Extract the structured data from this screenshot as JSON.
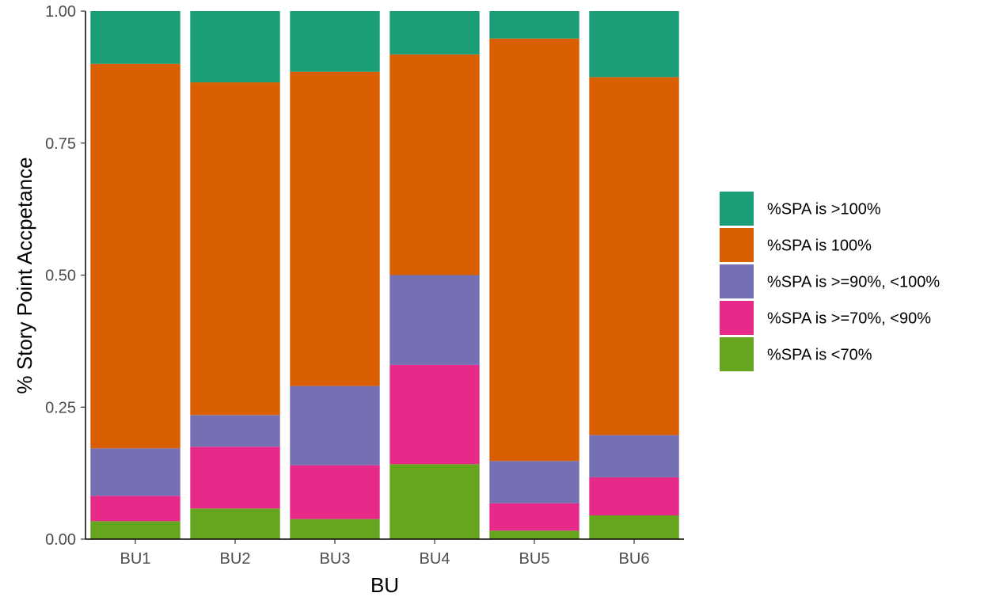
{
  "chart_data": {
    "type": "bar",
    "stacked": true,
    "position": "fill",
    "xlabel": "BU",
    "ylabel": "% Story Point Accpetance",
    "categories": [
      "BU1",
      "BU2",
      "BU3",
      "BU4",
      "BU5",
      "BU6"
    ],
    "ylim": [
      0,
      1
    ],
    "yticks": [
      0,
      0.25,
      0.5,
      0.75,
      1
    ],
    "ytick_labels": [
      "0.00",
      "0.25",
      "0.50",
      "0.75",
      "1.00"
    ],
    "grid": false,
    "legend_position": "right",
    "series": [
      {
        "name": "%SPA is >100%",
        "color": "#1b9e77",
        "values": [
          0.1,
          0.135,
          0.115,
          0.082,
          0.052,
          0.125
        ]
      },
      {
        "name": "%SPA is 100%",
        "color": "#d95f02",
        "values": [
          0.728,
          0.63,
          0.595,
          0.418,
          0.8,
          0.678
        ]
      },
      {
        "name": "%SPA is >=90%, <100%",
        "color": "#7570b3",
        "values": [
          0.09,
          0.06,
          0.15,
          0.17,
          0.08,
          0.08
        ]
      },
      {
        "name": "%SPA is >=70%, <90%",
        "color": "#e7298a",
        "values": [
          0.048,
          0.117,
          0.102,
          0.188,
          0.052,
          0.072
        ]
      },
      {
        "name": "%SPA is <70%",
        "color": "#66a61e",
        "values": [
          0.034,
          0.058,
          0.038,
          0.142,
          0.016,
          0.045
        ]
      }
    ]
  }
}
